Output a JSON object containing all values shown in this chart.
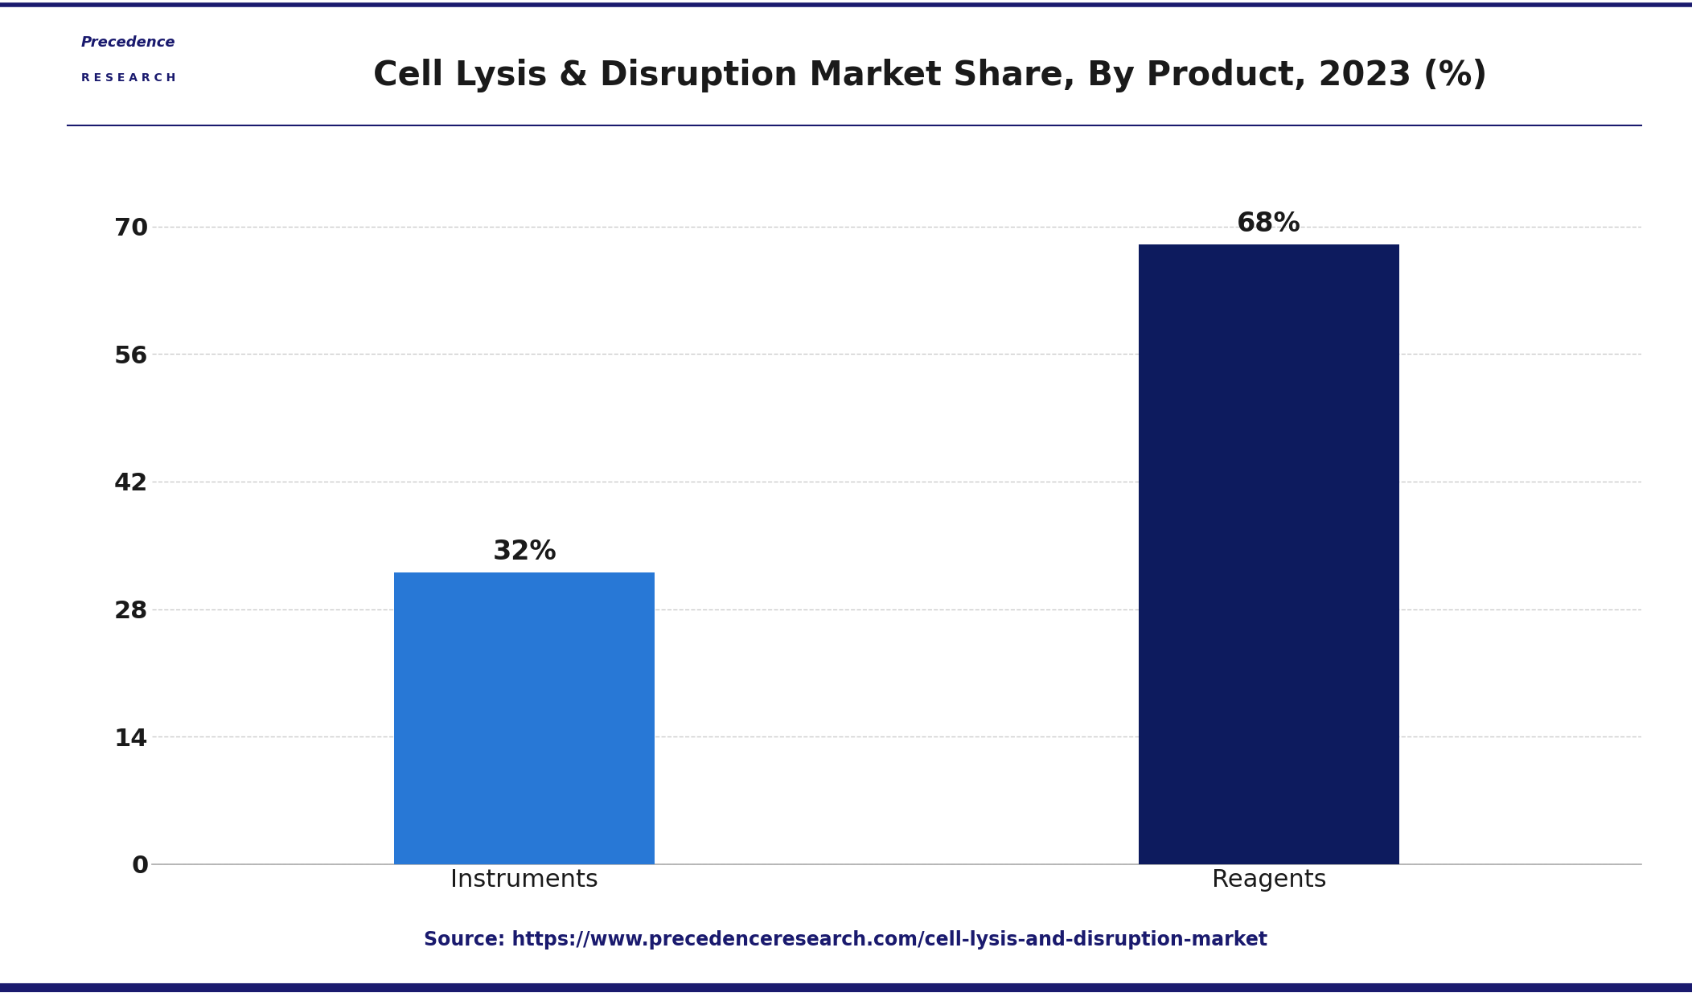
{
  "title": "Cell Lysis & Disruption Market Share, By Product, 2023 (%)",
  "categories": [
    "Instruments",
    "Reagents"
  ],
  "values": [
    32,
    68
  ],
  "bar_colors": [
    "#2878d6",
    "#0d1b5e"
  ],
  "labels": [
    "32%",
    "68%"
  ],
  "yticks": [
    0,
    14,
    28,
    42,
    56,
    70
  ],
  "ylim": [
    0,
    75
  ],
  "source_text": "Source: https://www.precedenceresearch.com/cell-lysis-and-disruption-market",
  "title_fontsize": 30,
  "tick_fontsize": 22,
  "label_fontsize": 24,
  "source_fontsize": 17,
  "bg_color": "#ffffff",
  "plot_bg_color": "#ffffff",
  "border_color": "#1a1a6e",
  "grid_color": "#cccccc",
  "source_color": "#1a1a6e",
  "title_color": "#1a1a1a",
  "tick_color": "#1a1a1a",
  "logo_color": "#1a1a6e"
}
